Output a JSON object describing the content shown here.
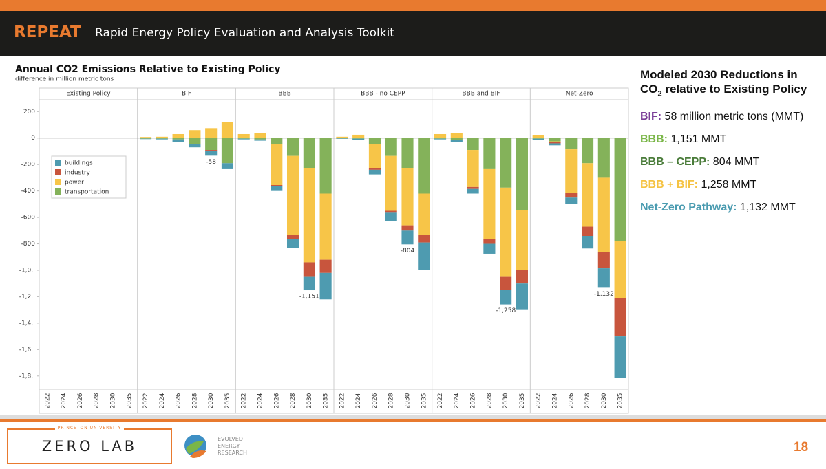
{
  "header": {
    "brand": "REPEAT",
    "title": "Rapid Energy Policy Evaluation and Analysis Toolkit"
  },
  "chart_data": {
    "type": "bar",
    "stacked": true,
    "title": "Annual CO2 Emissions Relative to Existing Policy",
    "subtitle": "difference in million metric tons",
    "facets": [
      "Existing Policy",
      "BIF",
      "BBB",
      "BBB - no CEPP",
      "BBB and BIF",
      "Net-Zero"
    ],
    "categories": [
      "2022",
      "2024",
      "2026",
      "2028",
      "2030",
      "2035",
      "2022",
      "2024",
      "2026",
      "2028",
      "2030",
      "2035",
      "2022",
      "2024",
      "2026",
      "2028",
      "2030",
      "2035",
      "2022",
      "2024",
      "2026",
      "2028",
      "2030",
      "2035",
      "2022",
      "2024",
      "2026",
      "2028",
      "2030",
      "2035",
      "2022",
      "2024",
      "2026",
      "2028",
      "2030",
      "2035"
    ],
    "series": [
      {
        "name": "buildings",
        "color": "#4e9bb0",
        "values": [
          0,
          0,
          0,
          0,
          0,
          0,
          -3,
          -5,
          -20,
          -25,
          -38,
          -45,
          -5,
          -10,
          -35,
          -65,
          -101,
          -200,
          -3,
          -10,
          -35,
          -65,
          -104,
          -210,
          -5,
          -15,
          -35,
          -75,
          -108,
          -200,
          -10,
          -15,
          -50,
          -95,
          -147,
          -315
        ]
      },
      {
        "name": "industry",
        "color": "#c8553d",
        "values": [
          0,
          0,
          0,
          0,
          0,
          0,
          0,
          0,
          0,
          0,
          -5,
          3,
          0,
          0,
          -10,
          -35,
          -110,
          -100,
          0,
          0,
          -10,
          -15,
          -40,
          -60,
          0,
          0,
          -15,
          -35,
          -100,
          -100,
          0,
          -10,
          -35,
          -70,
          -125,
          -290
        ]
      },
      {
        "name": "power",
        "color": "#f7c548",
        "values": [
          0,
          0,
          0,
          0,
          0,
          0,
          8,
          10,
          30,
          60,
          75,
          120,
          30,
          40,
          -310,
          -595,
          -715,
          -500,
          10,
          25,
          -185,
          -415,
          -435,
          -310,
          30,
          40,
          -280,
          -530,
          -675,
          -455,
          20,
          -5,
          -330,
          -480,
          -560,
          -430
        ]
      },
      {
        "name": "transportation",
        "color": "#84b25a",
        "values": [
          0,
          0,
          0,
          0,
          0,
          0,
          -5,
          -5,
          -10,
          -45,
          -90,
          -190,
          -5,
          -10,
          -45,
          -135,
          -225,
          -420,
          -3,
          -5,
          -45,
          -135,
          -225,
          -420,
          -5,
          -15,
          -90,
          -235,
          -375,
          -545,
          -5,
          -25,
          -85,
          -190,
          -300,
          -780
        ]
      }
    ],
    "net_labels": {
      "values": [
        null,
        null,
        null,
        null,
        null,
        null,
        null,
        null,
        null,
        null,
        -58,
        null,
        null,
        null,
        null,
        null,
        -1151,
        null,
        null,
        null,
        null,
        null,
        -804,
        null,
        null,
        null,
        null,
        null,
        -1258,
        null,
        null,
        null,
        null,
        null,
        -1132,
        null
      ],
      "value_labels": [
        null,
        null,
        null,
        null,
        null,
        null,
        null,
        null,
        null,
        null,
        "-58",
        null,
        null,
        null,
        null,
        null,
        "-1,151",
        null,
        null,
        null,
        null,
        null,
        "-804",
        null,
        null,
        null,
        null,
        null,
        "-1,258",
        null,
        null,
        null,
        null,
        null,
        "-1,132",
        null
      ]
    },
    "ylim": [
      -1900,
      290
    ],
    "yticks": [
      200,
      0,
      -200,
      -400,
      -600,
      -800,
      {
        "value": -1000,
        "label": "-1,0.."
      },
      {
        "value": -1200,
        "label": "-1,2.."
      },
      {
        "value": -1400,
        "label": "-1,4.."
      },
      {
        "value": -1600,
        "label": "-1,6.."
      },
      {
        "value": -1800,
        "label": "-1,8.."
      }
    ],
    "legend": "upper left"
  },
  "summary": {
    "title": "Modeled 2030 Reductions in",
    "title_co": "CO",
    "title_sub": "2",
    "title_rest": " relative to Existing Policy",
    "items": [
      {
        "label": "BIF:",
        "text": " 58 million metric tons (MMT)",
        "color": "#7b3f98"
      },
      {
        "label": "BBB:",
        "text": " 1,151 MMT",
        "color": "#7ab648"
      },
      {
        "label": "BBB – CEPP:",
        "text": " 804 MMT",
        "color": "#4a7c3a"
      },
      {
        "label": "BBB + BIF:",
        "text": " 1,258 MMT",
        "color": "#f5c342"
      },
      {
        "label": "Net-Zero Pathway:",
        "text": " 1,132 MMT",
        "color": "#4a9bb0"
      }
    ]
  },
  "footer": {
    "university": "PRINCETON UNIVERSITY",
    "lab": "ZERO LAB",
    "partner": [
      "EVOLVED",
      "ENERGY",
      "RESEARCH"
    ],
    "page": "18"
  }
}
